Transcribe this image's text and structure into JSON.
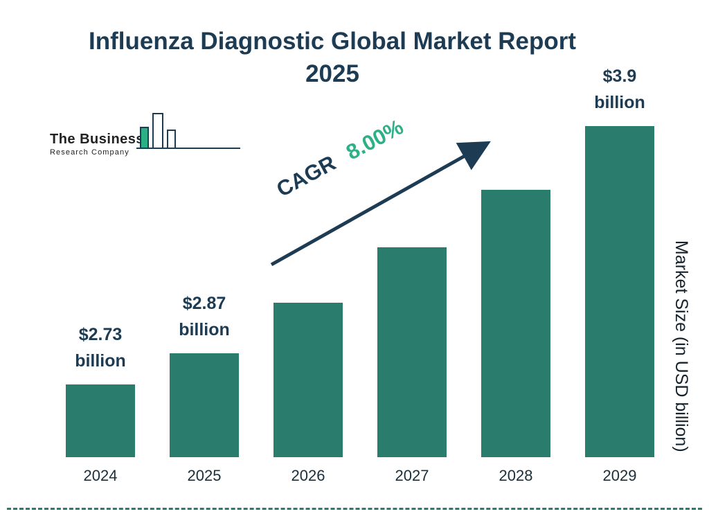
{
  "header": {
    "title_line1": "Influenza Diagnostic Global Market Report",
    "title_line2": "2025"
  },
  "logo": {
    "line1": "The Business",
    "line2": "Research Company"
  },
  "annotations": {
    "cagr_label": "CAGR",
    "cagr_value": "8.00%"
  },
  "axis": {
    "y_label": "Market Size (in USD billion)"
  },
  "colors": {
    "bar": "#2a7d6c",
    "navy": "#1d3c53",
    "green": "#2eb086"
  },
  "chart_data": {
    "type": "bar",
    "title": "Influenza Diagnostic Global Market Report 2025",
    "categories": [
      "2024",
      "2025",
      "2026",
      "2027",
      "2028",
      "2029"
    ],
    "values": [
      2.73,
      2.87,
      3.1,
      3.35,
      3.61,
      3.9
    ],
    "value_labels": {
      "2024": [
        "$2.73",
        "billion"
      ],
      "2025": [
        "$2.87",
        "billion"
      ],
      "2029": [
        "$3.9",
        "billion"
      ]
    },
    "cagr": "8.00%",
    "xlabel": "",
    "ylabel": "Market Size (in USD billion)",
    "ylim": [
      2.4,
      3.9
    ],
    "grid": false,
    "legend": "none",
    "bar_color": "#2a7d6c"
  }
}
